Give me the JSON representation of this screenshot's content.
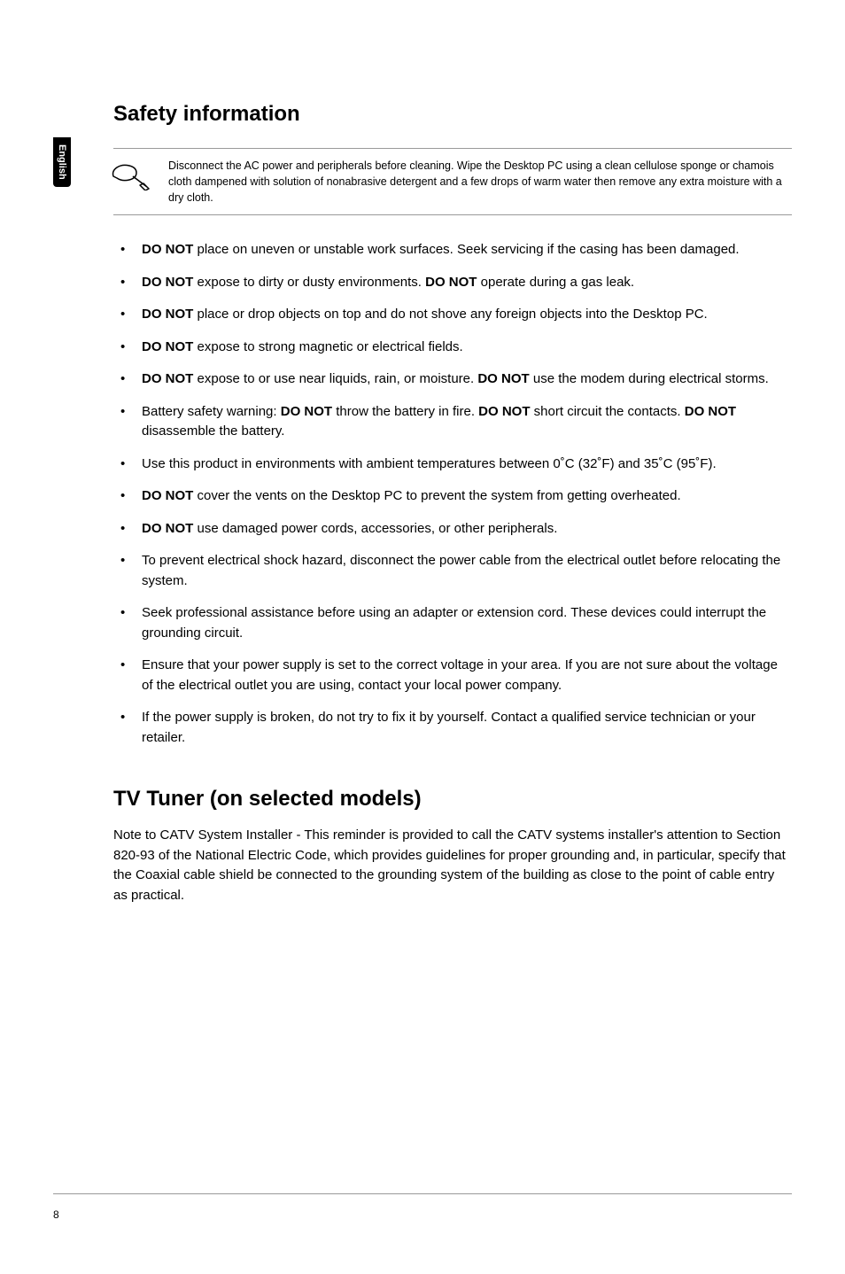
{
  "side_tab": "English",
  "heading1": "Safety information",
  "note": {
    "text": "Disconnect the AC power and peripherals before cleaning. Wipe the Desktop PC using a clean cellulose sponge or chamois cloth dampened with solution of nonabrasive detergent and a few drops of warm water then remove any extra moisture with a dry cloth."
  },
  "bullets": [
    "<b>DO NOT</b> place on uneven or unstable work surfaces. Seek servicing if the casing has been damaged.",
    "<b>DO NOT</b> expose to dirty or dusty environments. <b>DO NOT</b> operate during a gas leak.",
    "<b>DO NOT</b> place or drop objects on top and do not shove any foreign objects into the Desktop PC.",
    "<b>DO NOT</b> expose to strong magnetic or electrical fields.",
    "<b>DO NOT</b> expose to or use near liquids, rain, or moisture. <b>DO NOT</b> use the modem during electrical storms.",
    "Battery safety warning: <b>DO NOT</b> throw the battery in fire. <b>DO NOT</b> short circuit the contacts. <b>DO NOT</b> disassemble the battery.",
    "Use this product in environments with ambient temperatures between 0˚C (32˚F) and 35˚C (95˚F).",
    "<b>DO NOT</b> cover the vents on the Desktop PC to prevent the system from getting overheated.",
    "<b>DO NOT</b> use damaged power cords, accessories, or other peripherals.",
    "To prevent electrical shock hazard, disconnect the power cable from the electrical outlet before relocating the system.",
    "Seek professional assistance before using an adapter or extension cord. These devices could interrupt the grounding circuit.",
    "Ensure that your power supply is set to the correct voltage in your area. If you are not sure about the voltage of the electrical outlet you are using, contact your local power company.",
    "If the power supply is broken, do not try to fix it by yourself. Contact a qualified service technician or your retailer."
  ],
  "heading2": "TV Tuner (on selected models)",
  "body2": "Note to CATV System Installer - This reminder is provided to call the CATV systems installer's attention to Section 820-93 of the National Electric Code, which provides guidelines for proper grounding and, in particular, specify that the Coaxial cable shield be connected to the grounding system of the building as close to the point of cable entry as practical.",
  "page_number": "8",
  "colors": {
    "text": "#000000",
    "background": "#ffffff",
    "border": "#999999",
    "tab_bg": "#000000",
    "tab_text": "#ffffff"
  }
}
